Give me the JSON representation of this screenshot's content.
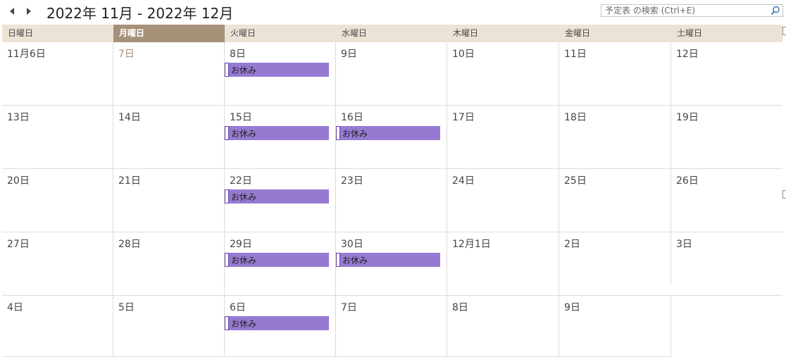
{
  "header": {
    "title": "2022年 11月 - 2022年 12月",
    "search_placeholder": "予定表 の検索 (Ctrl+E)",
    "prev_icon": "chevron-left-icon",
    "next_icon": "chevron-right-icon",
    "search_icon": "magnifier-icon"
  },
  "weekdays": [
    "日曜日",
    "月曜日",
    "火曜日",
    "水曜日",
    "木曜日",
    "金曜日",
    "土曜日"
  ],
  "today_weekday_index": 1,
  "event_label": "お休み",
  "colors": {
    "header_bg": "#ebe3d6",
    "today_bg": "#a69279",
    "event_bg": "#967ad2",
    "grid_line": "#dcdcdc"
  },
  "weeks": [
    [
      {
        "label": "11月6日"
      },
      {
        "label": "7日",
        "muted": true
      },
      {
        "label": "8日",
        "event": true
      },
      {
        "label": "9日"
      },
      {
        "label": "10日"
      },
      {
        "label": "11日"
      },
      {
        "label": "12日"
      }
    ],
    [
      {
        "label": "13日"
      },
      {
        "label": "14日"
      },
      {
        "label": "15日",
        "event": true
      },
      {
        "label": "16日",
        "event": true
      },
      {
        "label": "17日"
      },
      {
        "label": "18日"
      },
      {
        "label": "19日"
      }
    ],
    [
      {
        "label": "20日"
      },
      {
        "label": "21日"
      },
      {
        "label": "22日",
        "event": true
      },
      {
        "label": "23日"
      },
      {
        "label": "24日"
      },
      {
        "label": "25日"
      },
      {
        "label": "26日"
      }
    ],
    [
      {
        "label": "27日"
      },
      {
        "label": "28日"
      },
      {
        "label": "29日",
        "event": true
      },
      {
        "label": "30日",
        "event": true
      },
      {
        "label": "12月1日"
      },
      {
        "label": "2日"
      },
      {
        "label": "3日"
      }
    ],
    [
      {
        "label": "4日"
      },
      {
        "label": "5日"
      },
      {
        "label": "6日",
        "event": true
      },
      {
        "label": "7日"
      },
      {
        "label": "8日"
      },
      {
        "label": "9日"
      },
      {
        "label": ""
      }
    ]
  ]
}
